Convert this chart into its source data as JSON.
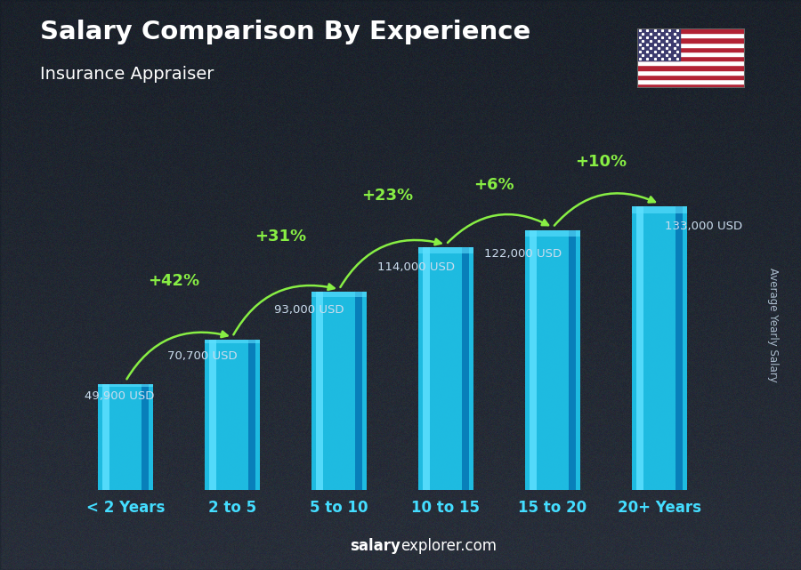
{
  "title": "Salary Comparison By Experience",
  "subtitle": "Insurance Appraiser",
  "categories": [
    "< 2 Years",
    "2 to 5",
    "5 to 10",
    "10 to 15",
    "15 to 20",
    "20+ Years"
  ],
  "values": [
    49900,
    70700,
    93000,
    114000,
    122000,
    133000
  ],
  "value_labels": [
    "49,900 USD",
    "70,700 USD",
    "93,000 USD",
    "114,000 USD",
    "122,000 USD",
    "133,000 USD"
  ],
  "pct_labels": [
    "+42%",
    "+31%",
    "+23%",
    "+6%",
    "+10%"
  ],
  "bar_color_main": "#1ec8f0",
  "bar_color_light": "#5de0ff",
  "bar_color_dark": "#0a90c0",
  "bar_color_shadow": "#0066aa",
  "bg_overlay": "#1a2535",
  "title_color": "#ffffff",
  "subtitle_color": "#ffffff",
  "value_color": "#ccddee",
  "pct_color": "#aaff00",
  "cat_color": "#44ddff",
  "ylabel_text": "Average Yearly Salary",
  "footer_bold": "salary",
  "footer_regular": "explorer.com",
  "ylim": [
    0,
    155000
  ],
  "arrow_color": "#88ee44"
}
